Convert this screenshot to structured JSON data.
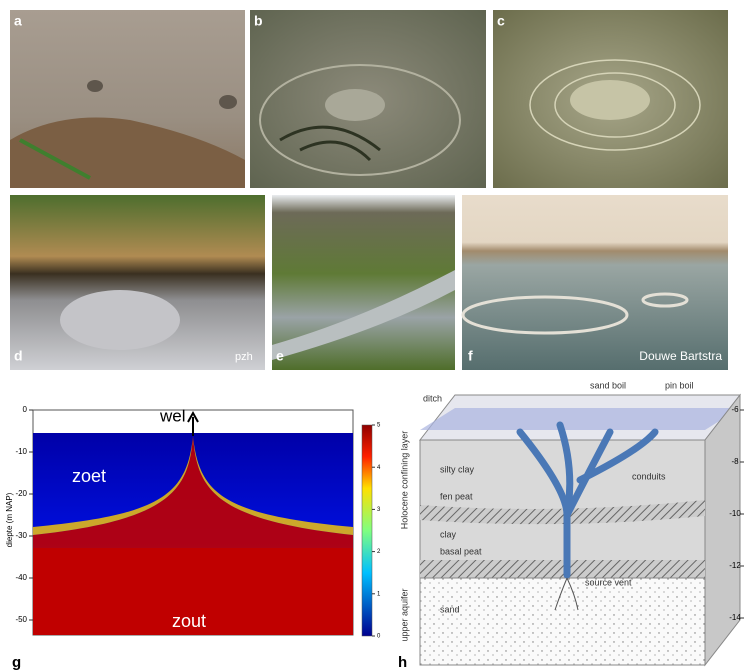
{
  "photos": [
    {
      "letter": "a"
    },
    {
      "letter": "b"
    },
    {
      "letter": "c"
    },
    {
      "letter": "d",
      "credit": "pzh"
    },
    {
      "letter": "e"
    },
    {
      "letter": "f",
      "credit": "Douwe Bartstra"
    }
  ],
  "panel_g": {
    "letter": "g",
    "well_label": "wel",
    "fresh_label": "zoet",
    "salt_label": "zout",
    "y_label": "diepte (m NAP)",
    "yticks": [
      0,
      -10,
      -20,
      -30,
      -40,
      -50
    ],
    "colorbar_ticks": [
      0,
      1,
      2,
      3,
      4,
      5
    ]
  },
  "panel_h": {
    "letter": "h",
    "ditch": "ditch",
    "sand_boil": "sand boil",
    "pin_boil": "pin boil",
    "confining_layer": "Holocene confining layer",
    "silty_clay": "silty clay",
    "conduits": "conduits",
    "fen_peat": "fen peat",
    "clay": "clay",
    "basal_peat": "basal peat",
    "source_vent": "source vent",
    "upper_aquifer": "upper aquifer",
    "sand": "sand",
    "depth_ticks": [
      -6,
      -8,
      -10,
      -12,
      -14
    ]
  }
}
